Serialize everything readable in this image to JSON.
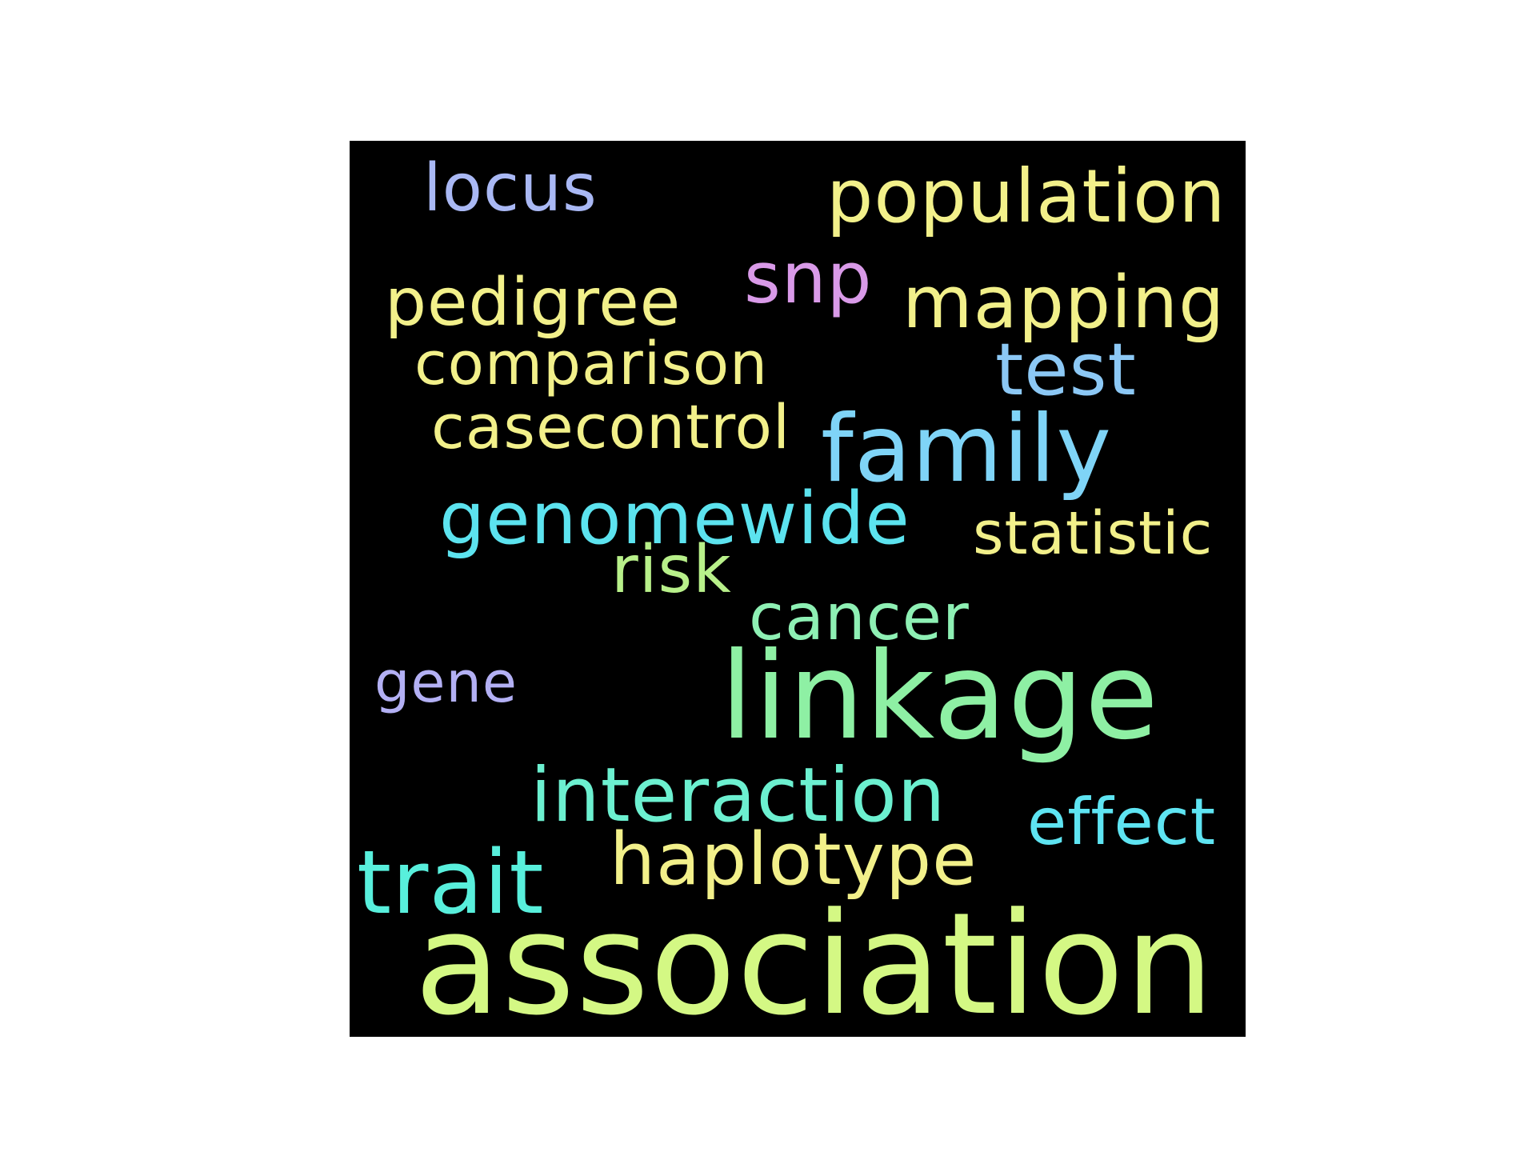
{
  "word_cloud": {
    "background_color": "#000000",
    "words": {
      "locus": {
        "text": "locus",
        "color": "#a9b8f4"
      },
      "population": {
        "text": "population",
        "color": "#f2f08a"
      },
      "snp": {
        "text": "snp",
        "color": "#d99ae8"
      },
      "pedigree": {
        "text": "pedigree",
        "color": "#f2f08a"
      },
      "mapping": {
        "text": "mapping",
        "color": "#f2f08a"
      },
      "comparison": {
        "text": "comparison",
        "color": "#f2f08a"
      },
      "test": {
        "text": "test",
        "color": "#8cc8f5"
      },
      "casecontrol": {
        "text": "casecontrol",
        "color": "#f2f08a"
      },
      "family": {
        "text": "family",
        "color": "#7fd4f7"
      },
      "genomewide": {
        "text": "genomewide",
        "color": "#5ce3ef"
      },
      "statistic": {
        "text": "statistic",
        "color": "#f2f08a"
      },
      "risk": {
        "text": "risk",
        "color": "#b8f08a"
      },
      "cancer": {
        "text": "cancer",
        "color": "#8ef0b4"
      },
      "gene": {
        "text": "gene",
        "color": "#b3b0f4"
      },
      "linkage": {
        "text": "linkage",
        "color": "#8ef0a4"
      },
      "interaction": {
        "text": "interaction",
        "color": "#6cf0d0"
      },
      "effect": {
        "text": "effect",
        "color": "#5ee4f2"
      },
      "haplotype": {
        "text": "haplotype",
        "color": "#f2f08a"
      },
      "trait": {
        "text": "trait",
        "color": "#58efdc"
      },
      "association": {
        "text": "association",
        "color": "#d4f884"
      }
    }
  }
}
